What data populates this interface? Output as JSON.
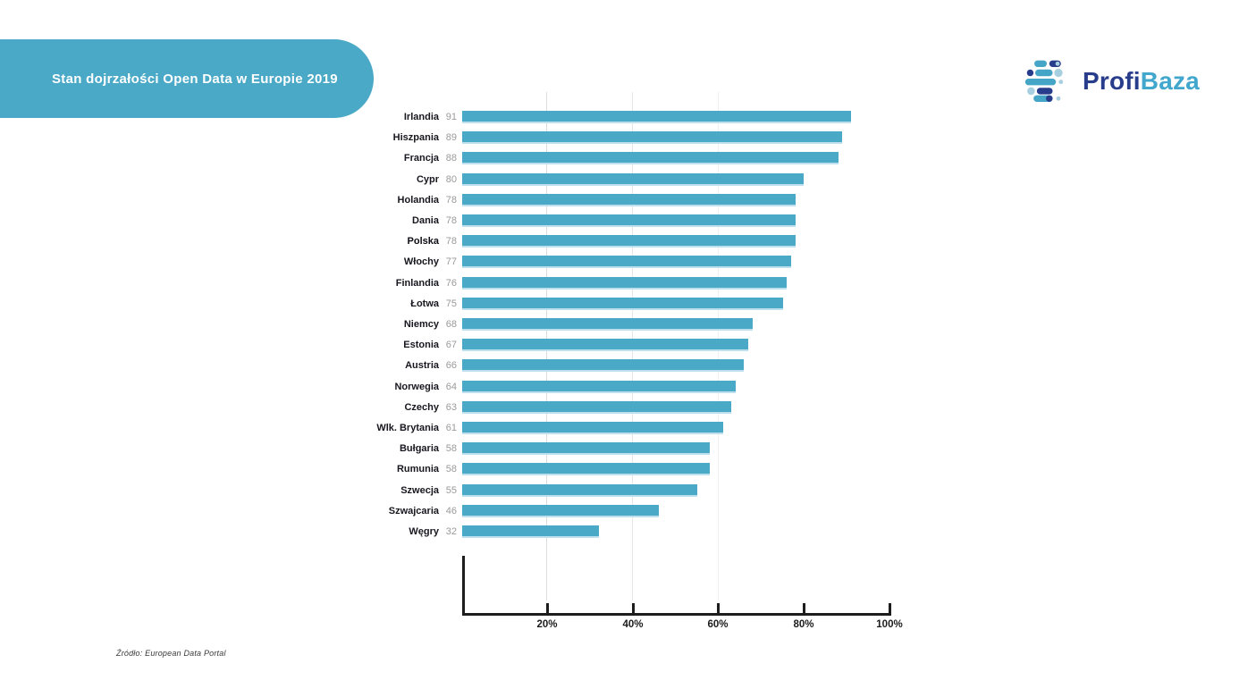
{
  "header": {
    "title": "Stan dojrzałości Open Data w Europie 2019"
  },
  "logo": {
    "name_part1": "Profi",
    "name_part2": "Baza",
    "navy_color": "#283c8c",
    "teal_color": "#41a7cc"
  },
  "source_note": "Źródło: European Data Portal",
  "colors": {
    "bar": "#4aa9c7",
    "banner": "#4aa9c7",
    "value_label": "#9a9a9a",
    "axis": "#1d1d1d"
  },
  "chart_data": {
    "type": "bar",
    "orientation": "horizontal",
    "title": "Stan dojrzałości Open Data w Europie 2019",
    "categories": [
      "Irlandia",
      "Hiszpania",
      "Francja",
      "Cypr",
      "Holandia",
      "Dania",
      "Polska",
      "Włochy",
      "Finlandia",
      "Łotwa",
      "Niemcy",
      "Estonia",
      "Austria",
      "Norwegia",
      "Czechy",
      "Wlk. Brytania",
      "Bułgaria",
      "Rumunia",
      "Szwecja",
      "Szwajcaria",
      "Węgry"
    ],
    "values": [
      91,
      89,
      88,
      80,
      78,
      78,
      78,
      77,
      76,
      75,
      68,
      67,
      66,
      64,
      63,
      61,
      58,
      58,
      55,
      46,
      32
    ],
    "highlighted_category": "Polska",
    "unit": "%",
    "xlim": [
      0,
      100
    ],
    "x_tick_values": [
      20,
      40,
      60,
      80,
      100
    ],
    "x_tick_labels": [
      "20%",
      "40%",
      "60%",
      "80%",
      "100%"
    ],
    "legend": "none",
    "grid": "vertical light gridlines at 20, 40, 60",
    "bar_color": "#4aa9c7"
  }
}
